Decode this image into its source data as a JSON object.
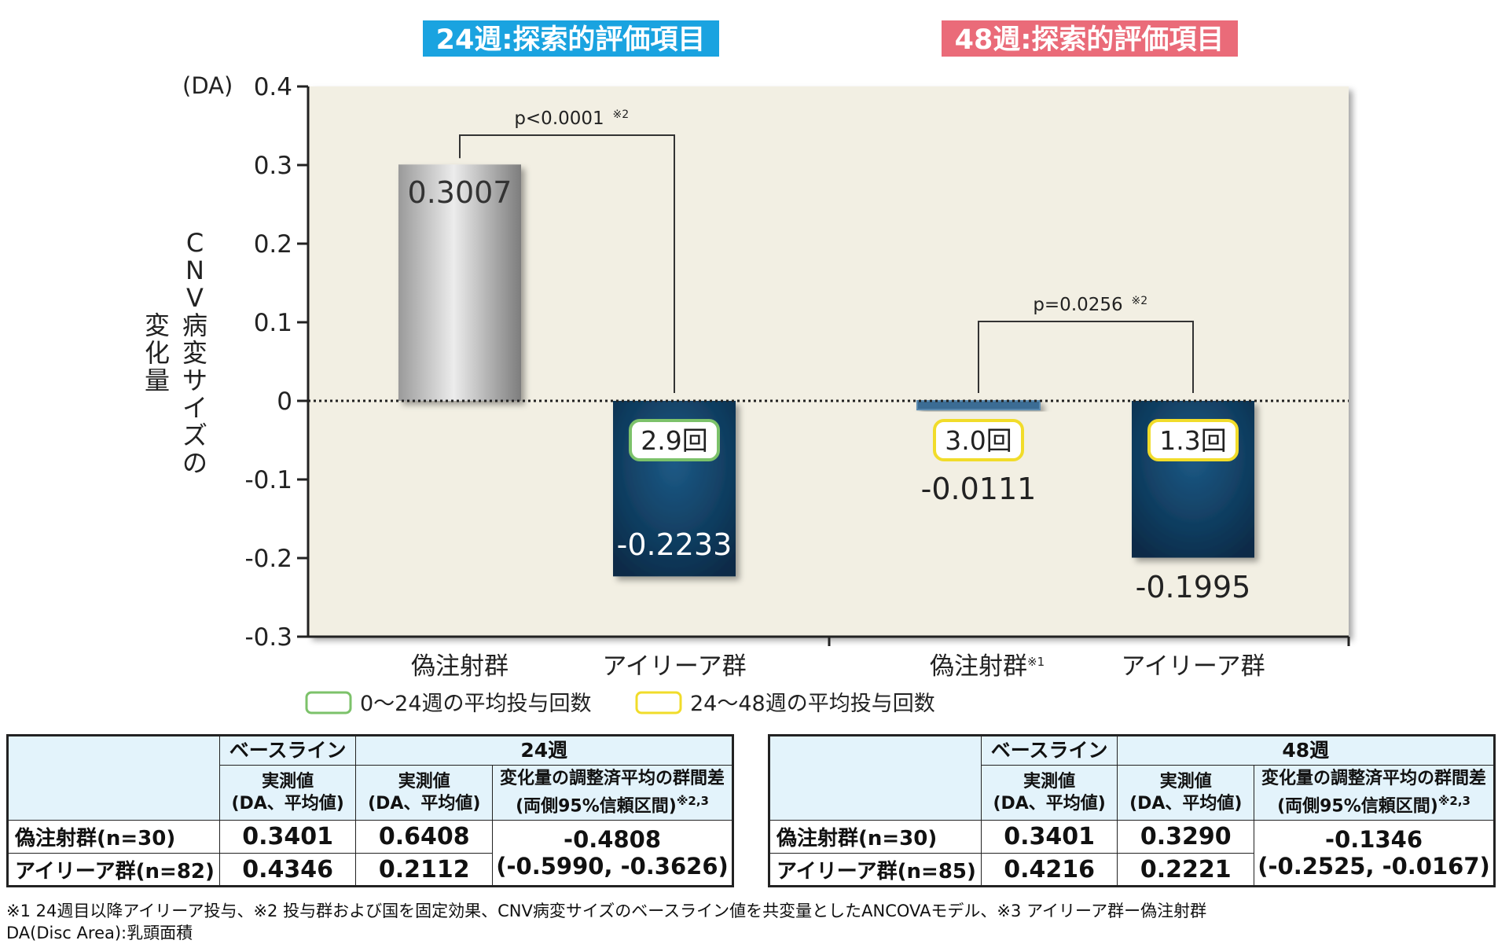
{
  "panels": [
    {
      "title": "24週:探索的評価項目",
      "color": "#1aa3e0"
    },
    {
      "title": "48週:探索的評価項目",
      "color": "#ea6b79"
    }
  ],
  "chart_data": {
    "type": "bar",
    "y_unit": "(DA)",
    "ylabel": "CNV病変サイズの変化量",
    "ylim": [
      -0.3,
      0.4
    ],
    "yticks": [
      "0.4",
      "0.3",
      "0.2",
      "0.1",
      "0",
      "-0.1",
      "-0.2",
      "-0.3"
    ],
    "grid": false,
    "categories": [
      "偽注射群",
      "アイリーア群",
      "偽注射群",
      "アイリーア群"
    ],
    "category_note": [
      "",
      "",
      "※1",
      ""
    ],
    "values": [
      0.3007,
      -0.2233,
      -0.0111,
      -0.1995
    ],
    "value_labels": [
      "0.3007",
      "-0.2233",
      "-0.0111",
      "-0.1995"
    ],
    "bar_colors": [
      "#c8c8c8",
      "#0e3d62",
      "#3a6c94",
      "#0e3d62"
    ],
    "dose_badges": [
      {
        "bar": 1,
        "text": "2.9回",
        "color": "#7cc26a"
      },
      {
        "bar": 2,
        "text": "3.0回",
        "color": "#f1dc2a"
      },
      {
        "bar": 3,
        "text": "1.3回",
        "color": "#f1dc2a"
      }
    ],
    "significance": [
      {
        "from": 0,
        "to": 1,
        "label": "p<0.0001",
        "note": "※2"
      },
      {
        "from": 2,
        "to": 3,
        "label": "p=0.0256",
        "note": "※2"
      }
    ],
    "legend": [
      {
        "label": "0～24週の平均投与回数",
        "color": "#7cc26a"
      },
      {
        "label": "24～48週の平均投与回数",
        "color": "#f1dc2a"
      }
    ],
    "legend_position": "bottom-left"
  },
  "tables": [
    {
      "baseline_header": "ベースライン",
      "period_header": "24週",
      "col_measured": [
        "実測値",
        "(DA、平均値)"
      ],
      "col_diff": [
        "変化量の調整済平均の群間差",
        "(両側95%信頼区間)"
      ],
      "col_diff_note": "※2,3",
      "rows": [
        {
          "label": "偽注射群(n=30)",
          "baseline": "0.3401",
          "measured": "0.6408"
        },
        {
          "label": "アイリーア群(n=82)",
          "baseline": "0.4346",
          "measured": "0.2112"
        }
      ],
      "diff": "-0.4808",
      "ci": "(-0.5990, -0.3626)"
    },
    {
      "baseline_header": "ベースライン",
      "period_header": "48週",
      "col_measured": [
        "実測値",
        "(DA、平均値)"
      ],
      "col_diff": [
        "変化量の調整済平均の群間差",
        "(両側95%信頼区間)"
      ],
      "col_diff_note": "※2,3",
      "rows": [
        {
          "label": "偽注射群(n=30)",
          "baseline": "0.3401",
          "measured": "0.3290"
        },
        {
          "label": "アイリーア群(n=85)",
          "baseline": "0.4216",
          "measured": "0.2221"
        }
      ],
      "diff": "-0.1346",
      "ci": "(-0.2525, -0.0167)"
    }
  ],
  "footnotes": [
    "※1 24週目以降アイリーア投与、※2 投与群および国を固定効果、CNV病変サイズのベースライン値を共変量としたANCOVAモデル、※3 アイリーア群ー偽注射群",
    "DA(Disc Area):乳頭面積"
  ]
}
